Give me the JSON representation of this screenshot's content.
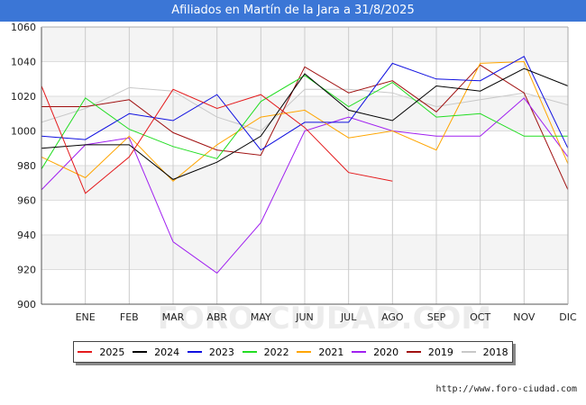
{
  "title": "Afiliados en Martín de la Jara a 31/8/2025",
  "footer": "http://www.foro-ciudad.com",
  "watermark": "FORO-CIUDAD.COM",
  "chart_data": {
    "type": "line",
    "categories": [
      "",
      "ENE",
      "FEB",
      "MAR",
      "ABR",
      "MAY",
      "JUN",
      "JUL",
      "AGO",
      "SEP",
      "OCT",
      "NOV",
      "DIC"
    ],
    "ylim": [
      900,
      1060
    ],
    "yticks": [
      900,
      920,
      940,
      960,
      980,
      1000,
      1020,
      1040,
      1060
    ],
    "grid": true,
    "legend_position": "bottom",
    "series": [
      {
        "name": "2025",
        "color": "#e41a1c",
        "values": [
          1026,
          964,
          985,
          1024,
          1013,
          1021,
          1002,
          976,
          971,
          null,
          null,
          null,
          null
        ]
      },
      {
        "name": "2024",
        "color": "#000000",
        "values": [
          990,
          992,
          992,
          972,
          982,
          997,
          1033,
          1012,
          1006,
          1026,
          1023,
          1036,
          1026
        ]
      },
      {
        "name": "2023",
        "color": "#1010e0",
        "values": [
          997,
          995,
          1010,
          1006,
          1021,
          989,
          1005,
          1005,
          1039,
          1030,
          1029,
          1043,
          990
        ]
      },
      {
        "name": "2022",
        "color": "#22dd22",
        "values": [
          978,
          1019,
          1001,
          991,
          984,
          1017,
          1032,
          1014,
          1028,
          1008,
          1010,
          997,
          997
        ]
      },
      {
        "name": "2021",
        "color": "#ffa500",
        "values": [
          985,
          973,
          997,
          971,
          992,
          1008,
          1012,
          996,
          1000,
          989,
          1039,
          1040,
          981
        ]
      },
      {
        "name": "2020",
        "color": "#a020f0",
        "values": [
          966,
          992,
          996,
          936,
          918,
          947,
          1000,
          1008,
          1000,
          997,
          997,
          1019,
          985
        ]
      },
      {
        "name": "2019",
        "color": "#a01010",
        "values": [
          1014,
          1014,
          1018,
          999,
          989,
          986,
          1037,
          1022,
          1029,
          1011,
          1038,
          1022,
          966
        ]
      },
      {
        "name": "2018",
        "color": "#c8c8c8",
        "values": [
          1005,
          1013,
          1025,
          1023,
          1008,
          1000,
          1024,
          1024,
          1022,
          1014,
          1018,
          1022,
          1015
        ]
      }
    ]
  }
}
